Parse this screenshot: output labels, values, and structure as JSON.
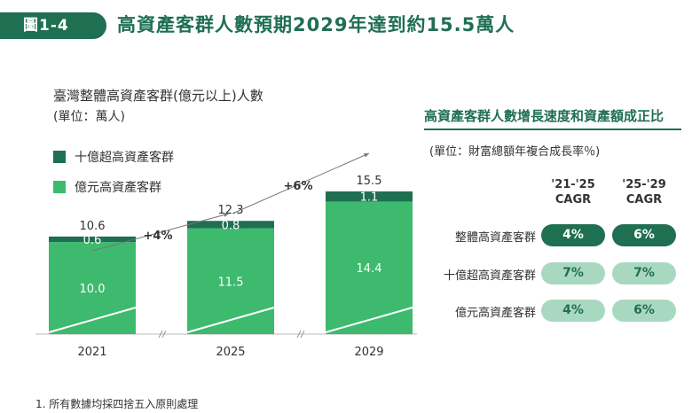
{
  "header": {
    "badge": "圖1-4",
    "title": "高資產客群人數預期2029年達到約15.5萬人"
  },
  "chart_data": {
    "type": "bar",
    "stacked": true,
    "title": "臺灣整體高資產客群(億元以上)人數",
    "unit": "(單位：萬人)",
    "categories": [
      "2021",
      "2025",
      "2029"
    ],
    "series": [
      {
        "name": "億元高資產客群",
        "values": [
          10.0,
          11.5,
          14.4
        ],
        "value_labels": [
          "10.0",
          "11.5",
          "14.4"
        ],
        "color": "#3dba6e"
      },
      {
        "name": "十億超高資產客群",
        "values": [
          0.6,
          0.8,
          1.1
        ],
        "value_labels": [
          "0.6",
          "0.8",
          "1.1"
        ],
        "color": "#1f6f52"
      }
    ],
    "totals": [
      "10.6",
      "12.3",
      "15.5"
    ],
    "growth_labels": [
      "+4%",
      "+6%"
    ],
    "legend_position": "top-left",
    "axis_break": true
  },
  "right_panel": {
    "title": "高資產客群人數增長速度和資產額成正比",
    "unit": "(單位：財富總額年複合成長率％)",
    "columns": [
      "'21-'25\nCAGR",
      "'25-'29\nCAGR"
    ],
    "rows": [
      {
        "label": "整體高資產客群",
        "values": [
          "4%",
          "6%"
        ],
        "style": "dark"
      },
      {
        "label": "十億超高資產客群",
        "values": [
          "7%",
          "7%"
        ],
        "style": "light"
      },
      {
        "label": "億元高資產客群",
        "values": [
          "4%",
          "6%"
        ],
        "style": "light"
      }
    ]
  },
  "footnote": "1. 所有數據均採四捨五入原則處理",
  "colors": {
    "dark_green": "#1f6f52",
    "bright_green": "#3dba6e",
    "light_green": "#a9d8c0"
  }
}
